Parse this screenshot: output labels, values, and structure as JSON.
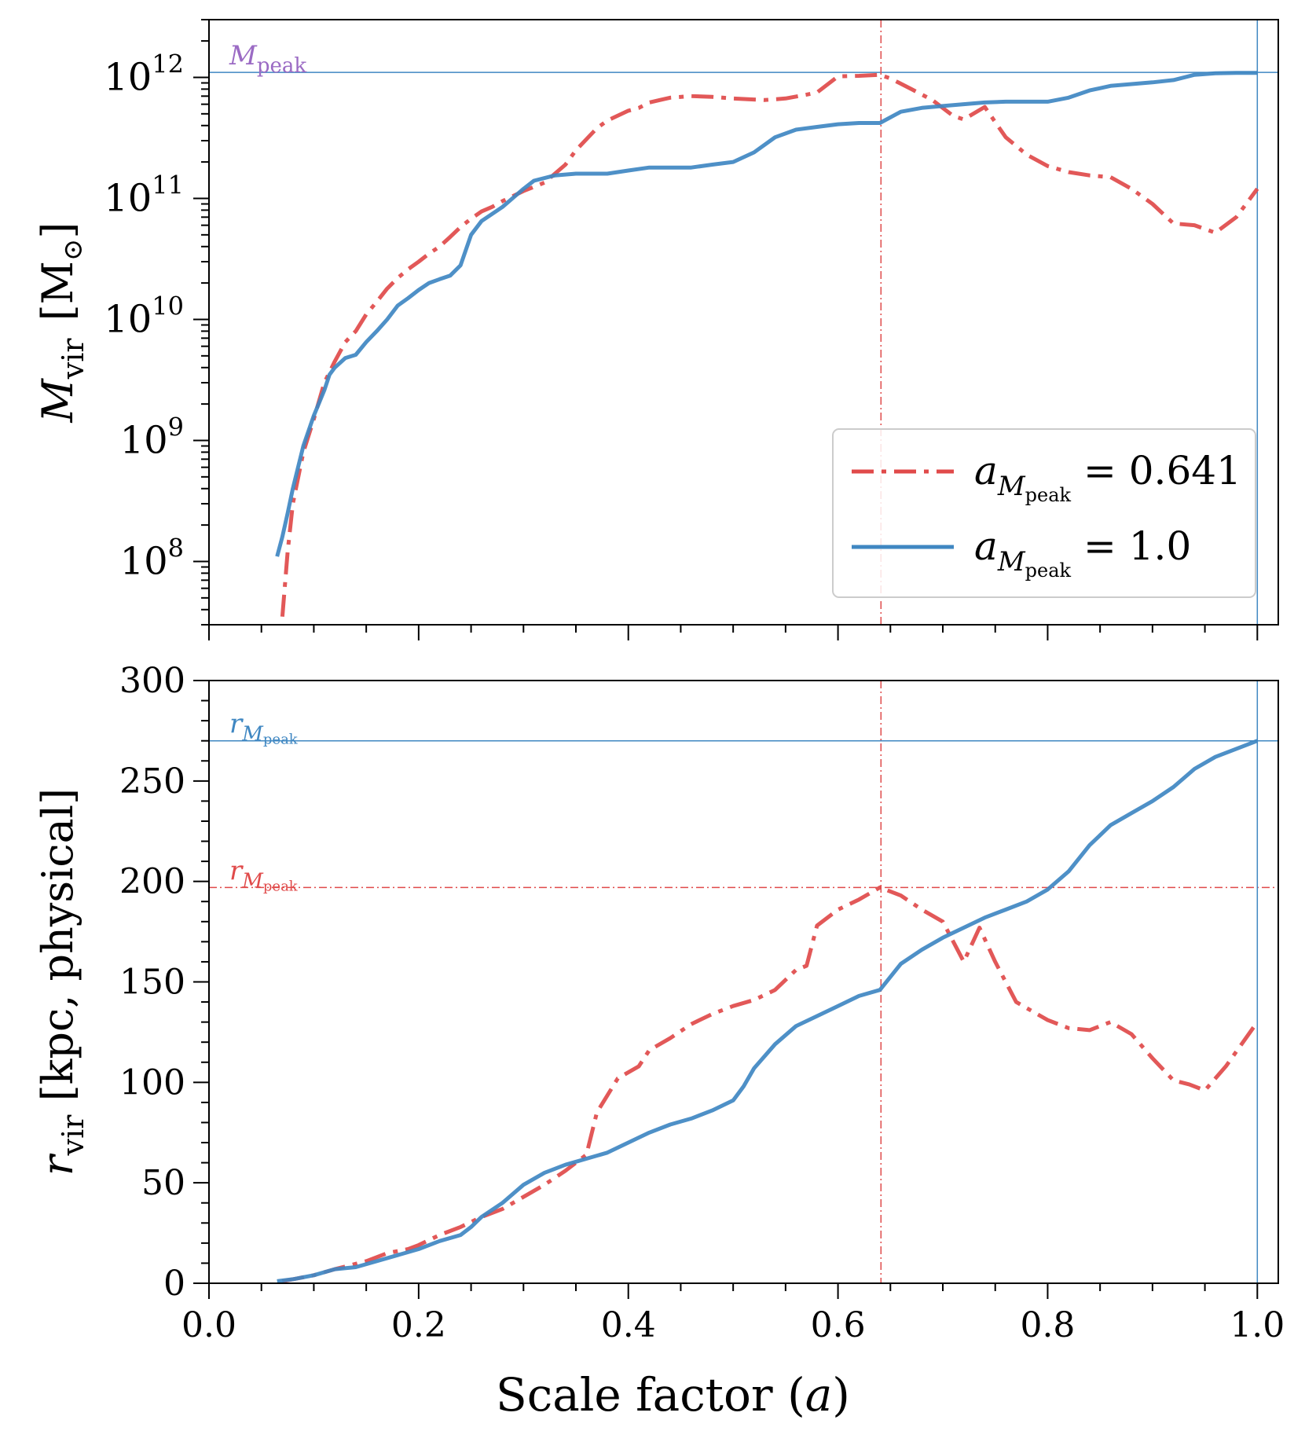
{
  "colors": {
    "red": "#e04a4a",
    "blue": "#3f87c2",
    "purple": "#9b6bc4",
    "axis": "#000000",
    "legend_border": "#cccccc"
  },
  "chart_data": [
    {
      "type": "line",
      "panel": "top",
      "yscale": "log",
      "ylim": [
        30000000.0,
        3000000000000.0
      ],
      "xlim": [
        0.0,
        1.02
      ],
      "ylabel": {
        "main": "M",
        "sub": "vir",
        "unit": "[M",
        "unit_sym": "⊙",
        "unit_close": "]"
      },
      "ytick_labels": [
        {
          "value": 100000000.0,
          "base": "10",
          "exp": "8"
        },
        {
          "value": 1000000000.0,
          "base": "10",
          "exp": "9"
        },
        {
          "value": 10000000000.0,
          "base": "10",
          "exp": "10"
        },
        {
          "value": 100000000000.0,
          "base": "10",
          "exp": "11"
        },
        {
          "value": 1000000000000.0,
          "base": "10",
          "exp": "12"
        }
      ],
      "hlines": [
        {
          "y": 1100000000000.0,
          "color": "blue",
          "style": "solid",
          "label": {
            "main": "M",
            "sub": "peak",
            "color": "purple"
          }
        }
      ],
      "vlines": [
        {
          "x": 0.641,
          "color": "red",
          "style": "dashdot"
        },
        {
          "x": 1.0,
          "color": "blue",
          "style": "solid"
        }
      ],
      "legend": {
        "position": "lower right",
        "entries": [
          {
            "series": 0,
            "prefix": "a",
            "sub": "M",
            "subsub": "peak",
            "eq": " = 0.641"
          },
          {
            "series": 1,
            "prefix": "a",
            "sub": "M",
            "subsub": "peak",
            "eq": " = 1.0"
          }
        ]
      },
      "series": [
        {
          "color": "red",
          "style": "dashdot",
          "x": [
            0.07,
            0.075,
            0.08,
            0.09,
            0.1,
            0.11,
            0.12,
            0.13,
            0.14,
            0.15,
            0.16,
            0.17,
            0.18,
            0.19,
            0.2,
            0.21,
            0.22,
            0.23,
            0.24,
            0.25,
            0.26,
            0.27,
            0.28,
            0.3,
            0.32,
            0.34,
            0.35,
            0.37,
            0.38,
            0.4,
            0.41,
            0.42,
            0.43,
            0.44,
            0.46,
            0.48,
            0.5,
            0.53,
            0.55,
            0.57,
            0.58,
            0.6,
            0.62,
            0.64,
            0.65,
            0.67,
            0.69,
            0.71,
            0.72,
            0.74,
            0.76,
            0.78,
            0.8,
            0.82,
            0.84,
            0.86,
            0.88,
            0.9,
            0.92,
            0.94,
            0.96,
            0.98,
            1.0
          ],
          "y": [
            35000000.0,
            120000000.0,
            300000000.0,
            800000000.0,
            1500000000.0,
            3000000000.0,
            4500000000.0,
            6500000000.0,
            8000000000.0,
            11000000000.0,
            14000000000.0,
            18000000000.0,
            22000000000.0,
            26000000000.0,
            30000000000.0,
            35000000000.0,
            40000000000.0,
            48000000000.0,
            58000000000.0,
            68000000000.0,
            78000000000.0,
            85000000000.0,
            95000000000.0,
            115000000000.0,
            135000000000.0,
            190000000000.0,
            250000000000.0,
            380000000000.0,
            440000000000.0,
            530000000000.0,
            560000000000.0,
            620000000000.0,
            650000000000.0,
            680000000000.0,
            700000000000.0,
            690000000000.0,
            670000000000.0,
            650000000000.0,
            670000000000.0,
            720000000000.0,
            750000000000.0,
            1020000000000.0,
            1030000000000.0,
            1050000000000.0,
            980000000000.0,
            800000000000.0,
            650000000000.0,
            480000000000.0,
            450000000000.0,
            570000000000.0,
            320000000000.0,
            230000000000.0,
            185000000000.0,
            165000000000.0,
            155000000000.0,
            150000000000.0,
            120000000000.0,
            90000000000.0,
            62000000000.0,
            60000000000.0,
            52000000000.0,
            70000000000.0,
            120000000000.0
          ]
        },
        {
          "color": "blue",
          "style": "solid",
          "x": [
            0.065,
            0.07,
            0.075,
            0.08,
            0.085,
            0.09,
            0.1,
            0.11,
            0.115,
            0.12,
            0.13,
            0.14,
            0.15,
            0.16,
            0.17,
            0.18,
            0.19,
            0.2,
            0.21,
            0.22,
            0.23,
            0.24,
            0.25,
            0.26,
            0.28,
            0.3,
            0.31,
            0.33,
            0.35,
            0.37,
            0.38,
            0.4,
            0.42,
            0.44,
            0.46,
            0.48,
            0.5,
            0.52,
            0.54,
            0.56,
            0.58,
            0.6,
            0.62,
            0.64,
            0.66,
            0.68,
            0.7,
            0.72,
            0.74,
            0.76,
            0.78,
            0.8,
            0.82,
            0.84,
            0.86,
            0.88,
            0.9,
            0.92,
            0.94,
            0.96,
            0.98,
            1.0
          ],
          "y": [
            110000000.0,
            160000000.0,
            250000000.0,
            400000000.0,
            600000000.0,
            900000000.0,
            1600000000.0,
            2600000000.0,
            3500000000.0,
            4000000000.0,
            4800000000.0,
            5100000000.0,
            6500000000.0,
            8000000000.0,
            10000000000.0,
            13000000000.0,
            15000000000.0,
            17500000000.0,
            20000000000.0,
            21500000000.0,
            23000000000.0,
            28000000000.0,
            50000000000.0,
            65000000000.0,
            85000000000.0,
            120000000000.0,
            140000000000.0,
            155000000000.0,
            160000000000.0,
            160000000000.0,
            160000000000.0,
            170000000000.0,
            180000000000.0,
            180000000000.0,
            180000000000.0,
            190000000000.0,
            200000000000.0,
            240000000000.0,
            320000000000.0,
            370000000000.0,
            390000000000.0,
            410000000000.0,
            420000000000.0,
            420000000000.0,
            520000000000.0,
            560000000000.0,
            580000000000.0,
            600000000000.0,
            620000000000.0,
            630000000000.0,
            630000000000.0,
            630000000000.0,
            680000000000.0,
            780000000000.0,
            850000000000.0,
            880000000000.0,
            910000000000.0,
            950000000000.0,
            1050000000000.0,
            1080000000000.0,
            1090000000000.0,
            1090000000000.0
          ]
        }
      ]
    },
    {
      "type": "line",
      "panel": "bottom",
      "yscale": "linear",
      "ylim": [
        0,
        300
      ],
      "xlim": [
        0.0,
        1.02
      ],
      "xlabel": {
        "text": "Scale factor (",
        "var": "a",
        "close": ")"
      },
      "ylabel": {
        "main": "r",
        "sub": "vir",
        "unit": " [kpc, physical]"
      },
      "yticks": [
        0,
        50,
        100,
        150,
        200,
        250,
        300
      ],
      "ytick_labels": [
        "0",
        "50",
        "100",
        "150",
        "200",
        "250",
        "300"
      ],
      "xticks": [
        0.0,
        0.2,
        0.4,
        0.6,
        0.8,
        1.0
      ],
      "xtick_labels": [
        "0.0",
        "0.2",
        "0.4",
        "0.6",
        "0.8",
        "1.0"
      ],
      "hlines": [
        {
          "y": 270,
          "color": "blue",
          "style": "solid",
          "label": {
            "main": "r",
            "sub": "M",
            "subsub": "peak",
            "color": "blue"
          }
        },
        {
          "y": 197,
          "color": "red",
          "style": "dashdot",
          "label": {
            "main": "r",
            "sub": "M",
            "subsub": "peak",
            "color": "red"
          }
        }
      ],
      "vlines": [
        {
          "x": 0.641,
          "color": "red",
          "style": "dashdot"
        },
        {
          "x": 1.0,
          "color": "blue",
          "style": "solid"
        }
      ],
      "series": [
        {
          "color": "red",
          "style": "dashdot",
          "x": [
            0.07,
            0.08,
            0.1,
            0.12,
            0.15,
            0.17,
            0.19,
            0.2,
            0.22,
            0.24,
            0.26,
            0.28,
            0.3,
            0.32,
            0.34,
            0.36,
            0.37,
            0.39,
            0.41,
            0.42,
            0.44,
            0.46,
            0.48,
            0.5,
            0.52,
            0.54,
            0.56,
            0.57,
            0.58,
            0.6,
            0.62,
            0.64,
            0.66,
            0.68,
            0.7,
            0.72,
            0.735,
            0.75,
            0.77,
            0.8,
            0.82,
            0.84,
            0.86,
            0.88,
            0.9,
            0.92,
            0.935,
            0.95,
            0.97,
            1.0
          ],
          "y": [
            1,
            2,
            4,
            7,
            11,
            15,
            17,
            19,
            24,
            28,
            33,
            37,
            43,
            49,
            56,
            64,
            85,
            102,
            108,
            116,
            122,
            129,
            134,
            138,
            141,
            146,
            156,
            158,
            178,
            186,
            191,
            197,
            193,
            186,
            180,
            160,
            177,
            160,
            140,
            131,
            127,
            126,
            130,
            124,
            112,
            101,
            99,
            96,
            108,
            130
          ]
        },
        {
          "color": "blue",
          "style": "solid",
          "x": [
            0.065,
            0.08,
            0.1,
            0.12,
            0.14,
            0.16,
            0.18,
            0.2,
            0.22,
            0.24,
            0.25,
            0.26,
            0.28,
            0.3,
            0.32,
            0.34,
            0.36,
            0.38,
            0.4,
            0.42,
            0.44,
            0.46,
            0.48,
            0.5,
            0.51,
            0.52,
            0.54,
            0.56,
            0.58,
            0.6,
            0.62,
            0.64,
            0.66,
            0.68,
            0.7,
            0.72,
            0.74,
            0.76,
            0.78,
            0.8,
            0.82,
            0.84,
            0.86,
            0.88,
            0.9,
            0.92,
            0.94,
            0.96,
            0.98,
            1.0
          ],
          "y": [
            1,
            2,
            4,
            7,
            8,
            11,
            14,
            17,
            21,
            24,
            28,
            33,
            40,
            49,
            55,
            59,
            62,
            65,
            70,
            75,
            79,
            82,
            86,
            91,
            98,
            107,
            119,
            128,
            133,
            138,
            143,
            146,
            159,
            166,
            172,
            177,
            182,
            186,
            190,
            196,
            205,
            218,
            228,
            234,
            240,
            247,
            256,
            262,
            266,
            270
          ]
        }
      ]
    }
  ]
}
